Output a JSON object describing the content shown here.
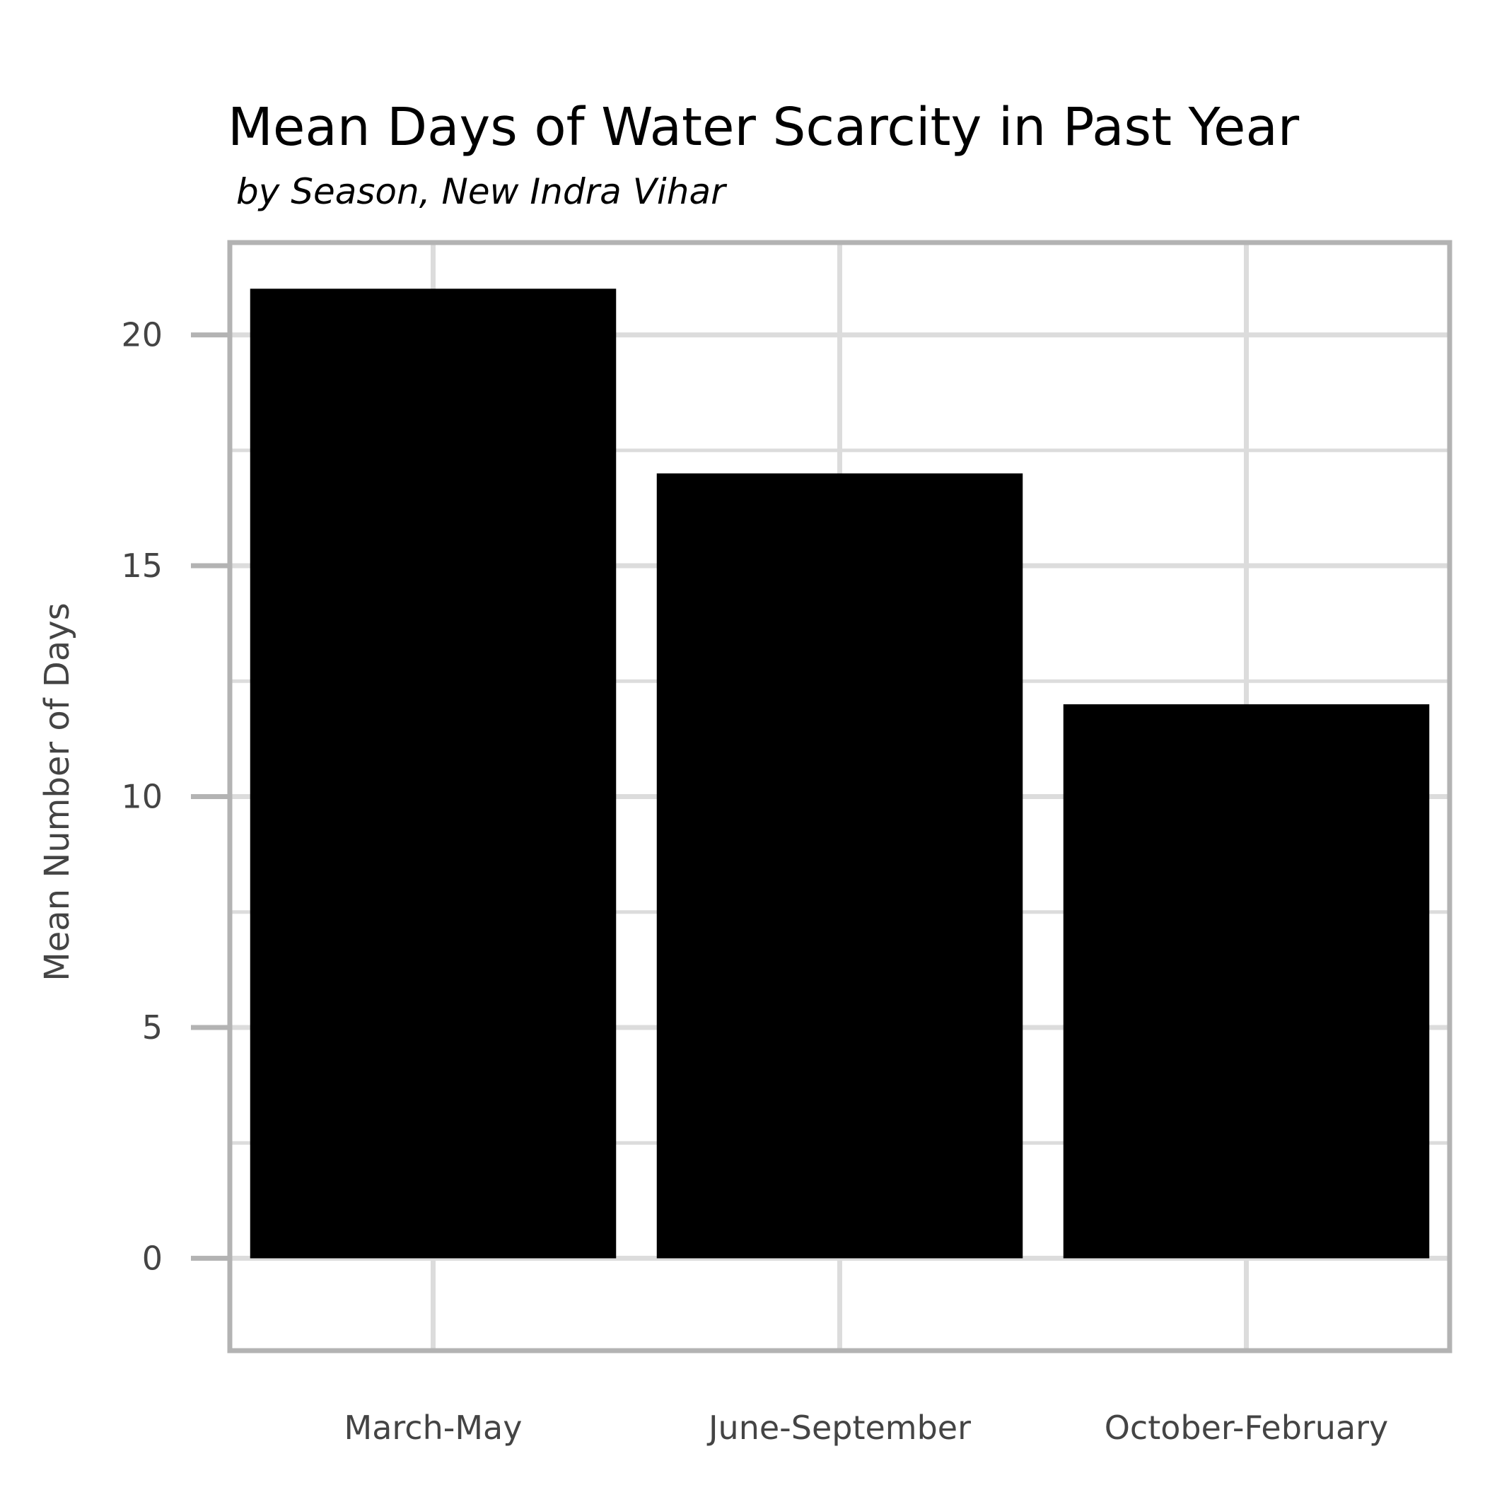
{
  "chart_data": {
    "type": "bar",
    "title": "Mean Days of Water Scarcity in Past Year",
    "subtitle": "by Season, New Indra Vihar",
    "xlabel": "",
    "ylabel": "Mean Number of Days",
    "categories": [
      "March-May",
      "June-September",
      "October-February"
    ],
    "values": [
      21,
      17,
      12
    ],
    "ylim": [
      -2,
      22
    ],
    "yticks": [
      0,
      5,
      10,
      15,
      20
    ],
    "ytick_labels": [
      "0",
      "5",
      "10",
      "15",
      "20"
    ],
    "grid": true,
    "legend": "none",
    "colors": {
      "bar": "#000000",
      "grid": "#dcdcdc",
      "frame": "#b3b3b3",
      "tick_text": "#444444"
    }
  }
}
